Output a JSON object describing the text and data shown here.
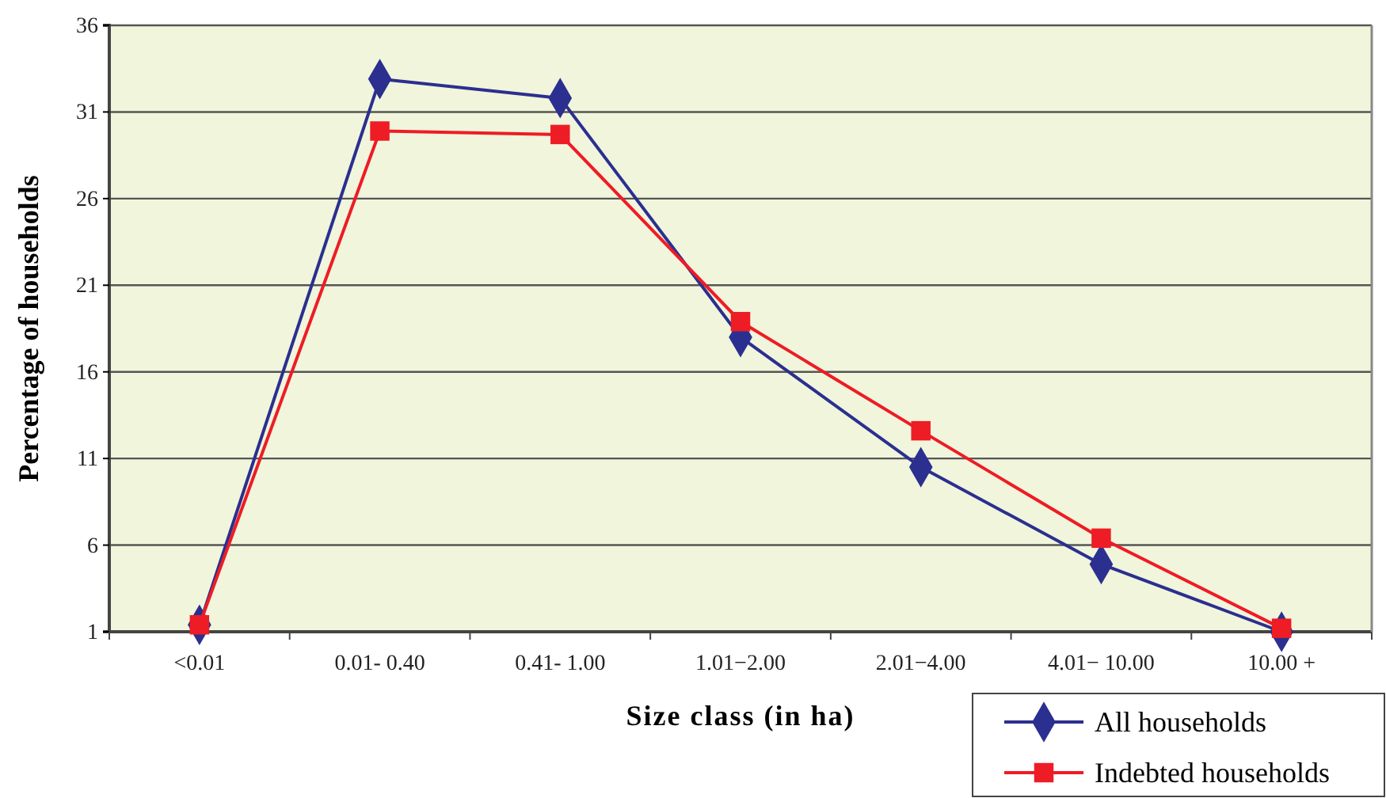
{
  "chart_data": {
    "type": "line",
    "xlabel": "Size class (in ha)",
    "ylabel": "Percentage of households",
    "categories": [
      "<0.01",
      "0.01- 0.40",
      "0.41- 1.00",
      "1.01−2.00",
      "2.01−4.00",
      "4.01− 10.00",
      "10.00 +"
    ],
    "series": [
      {
        "name": "All households",
        "color": "#2b2f8f",
        "marker": "diamond",
        "values": [
          1.4,
          32.9,
          31.8,
          18.0,
          10.5,
          4.9,
          1.0
        ]
      },
      {
        "name": "Indebted households",
        "color": "#ee1c25",
        "marker": "square",
        "values": [
          1.4,
          29.9,
          29.7,
          18.9,
          12.6,
          6.4,
          1.2
        ]
      }
    ],
    "ylim": [
      1,
      36
    ],
    "yticks": [
      1,
      6,
      11,
      16,
      21,
      26,
      31,
      36
    ],
    "grid": "y",
    "legend": "bottom right",
    "line_style": "solid"
  }
}
